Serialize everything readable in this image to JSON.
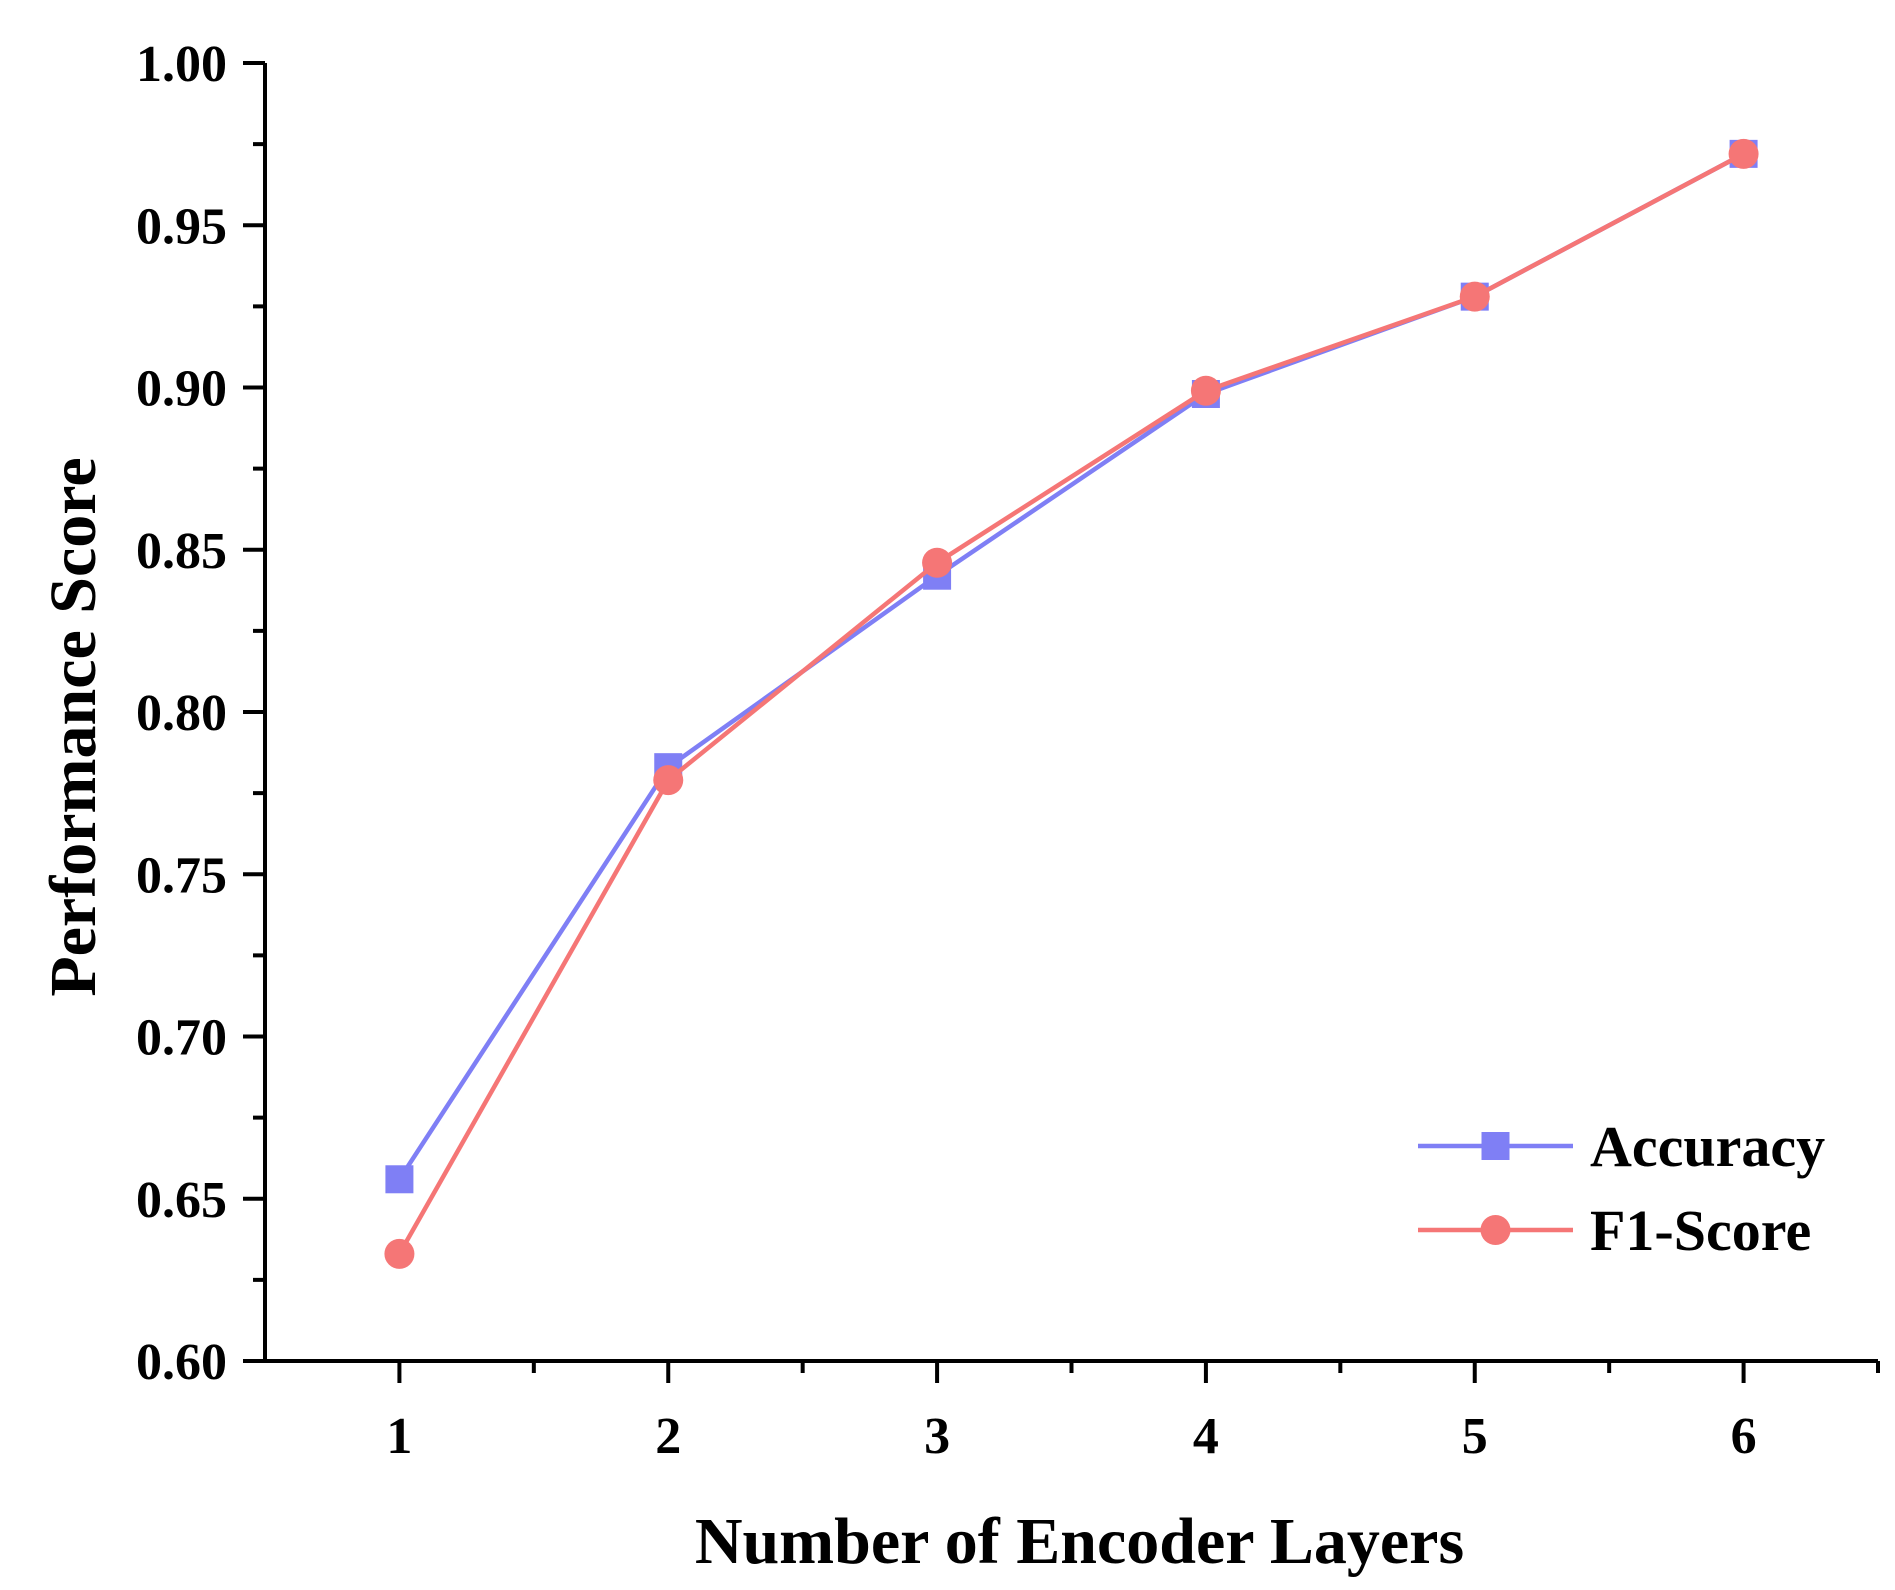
{
  "chart_data": {
    "type": "line",
    "title": "",
    "xlabel": "Number of Encoder Layers",
    "ylabel": "Performance Score",
    "x": [
      1,
      2,
      3,
      4,
      5,
      6
    ],
    "x_tick_labels": [
      "1",
      "2",
      "3",
      "4",
      "5",
      "6"
    ],
    "xlim": [
      0.5,
      6.5
    ],
    "ylim": [
      0.6,
      1.0
    ],
    "y_ticks": [
      0.6,
      0.65,
      0.7,
      0.75,
      0.8,
      0.85,
      0.9,
      0.95,
      1.0
    ],
    "y_tick_labels": [
      "0.60",
      "0.65",
      "0.70",
      "0.75",
      "0.80",
      "0.85",
      "0.90",
      "0.95",
      "1.00"
    ],
    "grid": false,
    "legend_position": "bottom-right",
    "series": [
      {
        "name": "Accuracy",
        "values": [
          0.656,
          0.783,
          0.842,
          0.898,
          0.928,
          0.972
        ],
        "color": "#7f7ff5",
        "marker": "square"
      },
      {
        "name": "F1-Score",
        "values": [
          0.633,
          0.779,
          0.846,
          0.899,
          0.928,
          0.972
        ],
        "color": "#f57676",
        "marker": "circle"
      }
    ]
  }
}
